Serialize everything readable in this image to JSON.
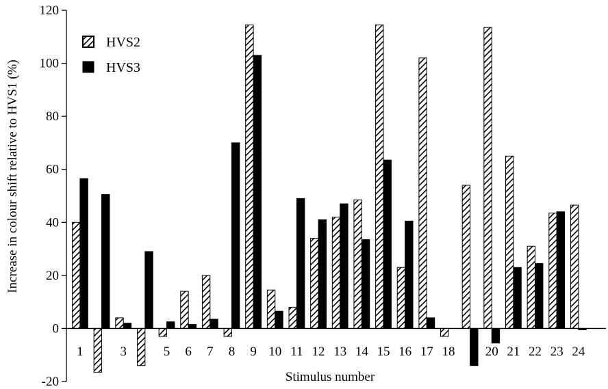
{
  "chart_data": {
    "type": "bar",
    "xlabel": "Stimulus number",
    "ylabel": "Increase in colour shift relative to HVS1 (%)",
    "ylim": [
      -20,
      120
    ],
    "yticks": [
      -20,
      0,
      20,
      40,
      60,
      80,
      100,
      120
    ],
    "grid": false,
    "legend_position": "top-left",
    "categories": [
      "1",
      "2",
      "3",
      "4",
      "5",
      "6",
      "7",
      "8",
      "9",
      "10",
      "11",
      "12",
      "13",
      "14",
      "15",
      "16",
      "17",
      "18",
      "19",
      "20",
      "21",
      "22",
      "23",
      "24"
    ],
    "category_labels": [
      "1",
      "",
      "3",
      "",
      "5",
      "6",
      "7",
      "8",
      "9",
      "10",
      "11",
      "12",
      "13",
      "14",
      "15",
      "16",
      "17",
      "18",
      "",
      "20",
      "21",
      "22",
      "23",
      "24"
    ],
    "series": [
      {
        "name": "HVS2",
        "pattern": "hatched",
        "values": [
          40,
          -16.5,
          4,
          -14,
          -3,
          14,
          20,
          -3,
          114.5,
          14.5,
          8,
          34,
          42,
          48.5,
          114.5,
          23,
          102,
          -3,
          54,
          113.5,
          65,
          31,
          43.5,
          46.5
        ]
      },
      {
        "name": "HVS3",
        "pattern": "solid",
        "values": [
          56.5,
          50.5,
          2,
          29,
          2.5,
          1.5,
          3.5,
          70,
          103,
          6.5,
          49,
          41,
          47,
          33.5,
          63.5,
          40.5,
          4,
          0,
          -14,
          -5.5,
          23,
          24.5,
          44,
          -0.5
        ]
      }
    ],
    "colors": {
      "solid": "#000000",
      "hatch": "#000000",
      "background": "#ffffff"
    }
  }
}
